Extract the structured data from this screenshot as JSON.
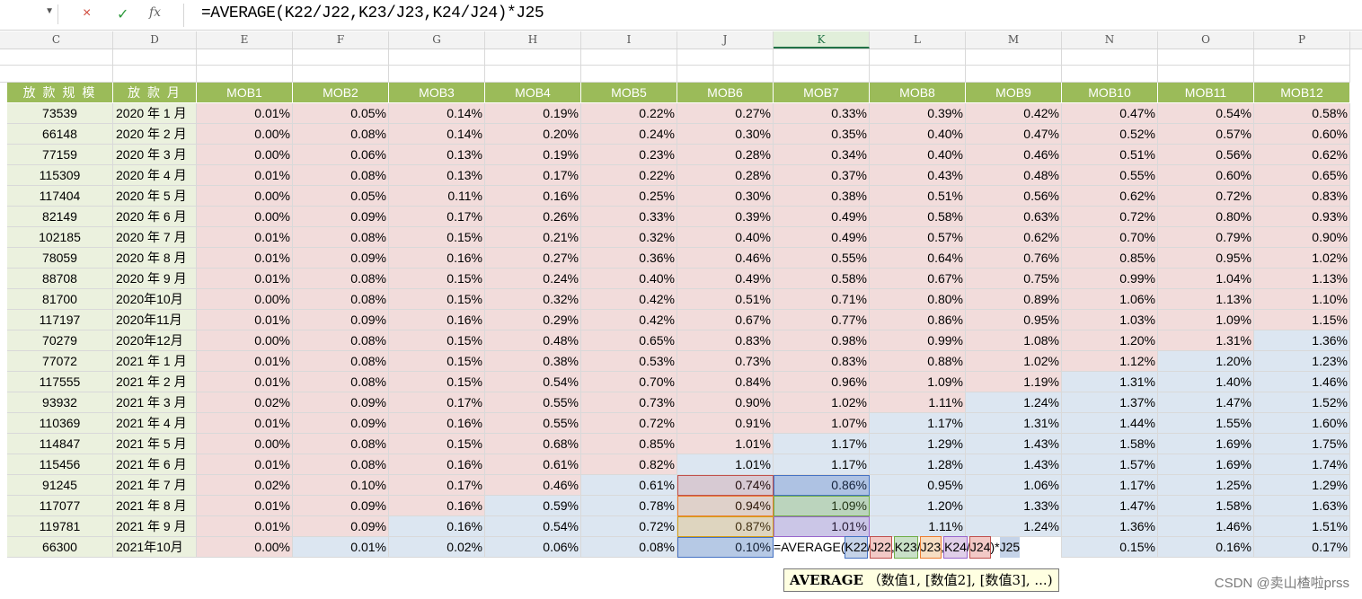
{
  "formula_bar": {
    "name_box": "",
    "cancel_icon": "×",
    "enter_icon": "✓",
    "fx_label": "fx",
    "formula": "=AVERAGE(K22/J22,K23/J23,K24/J24)*J25"
  },
  "columns": [
    {
      "letter": "C"
    },
    {
      "letter": "D"
    },
    {
      "letter": "E"
    },
    {
      "letter": "F"
    },
    {
      "letter": "G"
    },
    {
      "letter": "H"
    },
    {
      "letter": "I"
    },
    {
      "letter": "J"
    },
    {
      "letter": "K"
    },
    {
      "letter": "L"
    },
    {
      "letter": "M"
    },
    {
      "letter": "N"
    },
    {
      "letter": "O"
    },
    {
      "letter": "P"
    }
  ],
  "active_column": "K",
  "table": {
    "headers": [
      "放 款 规 模",
      "放 款 月",
      "MOB1",
      "MOB2",
      "MOB3",
      "MOB4",
      "MOB5",
      "MOB6",
      "MOB7",
      "MOB8",
      "MOB9",
      "MOB10",
      "MOB11",
      "MOB12"
    ],
    "rows": [
      {
        "amount": "73539",
        "month": "2020 年 1 月",
        "mob": [
          "0.01%",
          "0.05%",
          "0.14%",
          "0.19%",
          "0.22%",
          "0.27%",
          "0.33%",
          "0.39%",
          "0.42%",
          "0.47%",
          "0.54%",
          "0.58%"
        ]
      },
      {
        "amount": "66148",
        "month": "2020 年 2 月",
        "mob": [
          "0.00%",
          "0.08%",
          "0.14%",
          "0.20%",
          "0.24%",
          "0.30%",
          "0.35%",
          "0.40%",
          "0.47%",
          "0.52%",
          "0.57%",
          "0.60%"
        ]
      },
      {
        "amount": "77159",
        "month": "2020 年 3 月",
        "mob": [
          "0.00%",
          "0.06%",
          "0.13%",
          "0.19%",
          "0.23%",
          "0.28%",
          "0.34%",
          "0.40%",
          "0.46%",
          "0.51%",
          "0.56%",
          "0.62%"
        ]
      },
      {
        "amount": "115309",
        "month": "2020 年 4 月",
        "mob": [
          "0.01%",
          "0.08%",
          "0.13%",
          "0.17%",
          "0.22%",
          "0.28%",
          "0.37%",
          "0.43%",
          "0.48%",
          "0.55%",
          "0.60%",
          "0.65%"
        ]
      },
      {
        "amount": "117404",
        "month": "2020 年 5 月",
        "mob": [
          "0.00%",
          "0.05%",
          "0.11%",
          "0.16%",
          "0.25%",
          "0.30%",
          "0.38%",
          "0.51%",
          "0.56%",
          "0.62%",
          "0.72%",
          "0.83%"
        ]
      },
      {
        "amount": "82149",
        "month": "2020 年 6 月",
        "mob": [
          "0.00%",
          "0.09%",
          "0.17%",
          "0.26%",
          "0.33%",
          "0.39%",
          "0.49%",
          "0.58%",
          "0.63%",
          "0.72%",
          "0.80%",
          "0.93%"
        ]
      },
      {
        "amount": "102185",
        "month": "2020 年 7 月",
        "mob": [
          "0.01%",
          "0.08%",
          "0.15%",
          "0.21%",
          "0.32%",
          "0.40%",
          "0.49%",
          "0.57%",
          "0.62%",
          "0.70%",
          "0.79%",
          "0.90%"
        ]
      },
      {
        "amount": "78059",
        "month": "2020 年 8 月",
        "mob": [
          "0.01%",
          "0.09%",
          "0.16%",
          "0.27%",
          "0.36%",
          "0.46%",
          "0.55%",
          "0.64%",
          "0.76%",
          "0.85%",
          "0.95%",
          "1.02%"
        ]
      },
      {
        "amount": "88708",
        "month": "2020 年 9 月",
        "mob": [
          "0.01%",
          "0.08%",
          "0.15%",
          "0.24%",
          "0.40%",
          "0.49%",
          "0.58%",
          "0.67%",
          "0.75%",
          "0.99%",
          "1.04%",
          "1.13%"
        ]
      },
      {
        "amount": "81700",
        "month": "2020年10月",
        "mob": [
          "0.00%",
          "0.08%",
          "0.15%",
          "0.32%",
          "0.42%",
          "0.51%",
          "0.71%",
          "0.80%",
          "0.89%",
          "1.06%",
          "1.13%",
          "1.10%"
        ]
      },
      {
        "amount": "117197",
        "month": "2020年11月",
        "mob": [
          "0.01%",
          "0.09%",
          "0.16%",
          "0.29%",
          "0.42%",
          "0.67%",
          "0.77%",
          "0.86%",
          "0.95%",
          "1.03%",
          "1.09%",
          "1.15%"
        ]
      },
      {
        "amount": "70279",
        "month": "2020年12月",
        "mob": [
          "0.00%",
          "0.08%",
          "0.15%",
          "0.48%",
          "0.65%",
          "0.83%",
          "0.98%",
          "0.99%",
          "1.08%",
          "1.20%",
          "1.31%",
          "1.36%"
        ]
      },
      {
        "amount": "77072",
        "month": "2021 年 1 月",
        "mob": [
          "0.01%",
          "0.08%",
          "0.15%",
          "0.38%",
          "0.53%",
          "0.73%",
          "0.83%",
          "0.88%",
          "1.02%",
          "1.12%",
          "1.20%",
          "1.23%"
        ]
      },
      {
        "amount": "117555",
        "month": "2021 年 2 月",
        "mob": [
          "0.01%",
          "0.08%",
          "0.15%",
          "0.54%",
          "0.70%",
          "0.84%",
          "0.96%",
          "1.09%",
          "1.19%",
          "1.31%",
          "1.40%",
          "1.46%"
        ]
      },
      {
        "amount": "93932",
        "month": "2021 年 3 月",
        "mob": [
          "0.02%",
          "0.09%",
          "0.17%",
          "0.55%",
          "0.73%",
          "0.90%",
          "1.02%",
          "1.11%",
          "1.24%",
          "1.37%",
          "1.47%",
          "1.52%"
        ]
      },
      {
        "amount": "110369",
        "month": "2021 年 4 月",
        "mob": [
          "0.01%",
          "0.09%",
          "0.16%",
          "0.55%",
          "0.72%",
          "0.91%",
          "1.07%",
          "1.17%",
          "1.31%",
          "1.44%",
          "1.55%",
          "1.60%"
        ]
      },
      {
        "amount": "114847",
        "month": "2021 年 5 月",
        "mob": [
          "0.00%",
          "0.08%",
          "0.15%",
          "0.68%",
          "0.85%",
          "1.01%",
          "1.17%",
          "1.29%",
          "1.43%",
          "1.58%",
          "1.69%",
          "1.75%"
        ]
      },
      {
        "amount": "115456",
        "month": "2021 年 6 月",
        "mob": [
          "0.01%",
          "0.08%",
          "0.16%",
          "0.61%",
          "0.82%",
          "1.01%",
          "1.17%",
          "1.28%",
          "1.43%",
          "1.57%",
          "1.69%",
          "1.74%"
        ]
      },
      {
        "amount": "91245",
        "month": "2021 年 7 月",
        "mob": [
          "0.02%",
          "0.10%",
          "0.17%",
          "0.46%",
          "0.61%",
          "0.74%",
          "0.86%",
          "0.95%",
          "1.06%",
          "1.17%",
          "1.25%",
          "1.29%"
        ]
      },
      {
        "amount": "117077",
        "month": "2021 年 8 月",
        "mob": [
          "0.01%",
          "0.09%",
          "0.16%",
          "0.59%",
          "0.78%",
          "0.94%",
          "1.09%",
          "1.20%",
          "1.33%",
          "1.47%",
          "1.58%",
          "1.63%"
        ]
      },
      {
        "amount": "119781",
        "month": "2021 年 9 月",
        "mob": [
          "0.01%",
          "0.09%",
          "0.16%",
          "0.54%",
          "0.72%",
          "0.87%",
          "1.01%",
          "1.11%",
          "1.24%",
          "1.36%",
          "1.46%",
          "1.51%"
        ]
      },
      {
        "amount": "66300",
        "month": "2021年10月",
        "mob": [
          "0.00%",
          "0.01%",
          "0.02%",
          "0.06%",
          "0.08%",
          "0.10%",
          "",
          "",
          "",
          "0.15%",
          "0.16%",
          "0.17%"
        ]
      }
    ]
  },
  "colors": {
    "header_bg": "#9bbb59",
    "actual": "#f2dcdb",
    "projected": "#dce6f1",
    "label_bg": "#ebf1de"
  },
  "color_map": [
    "pppppppppppp",
    "pppppppppppp",
    "pppppppppppp",
    "pppppppppppp",
    "pppppppppppp",
    "pppppppppppp",
    "pppppppppppp",
    "pppppppppppp",
    "pppppppppppp",
    "pppppppppppp",
    "pppppppppppp",
    "pppppppppppb",
    "ppppppppppbb",
    "pppppppppbbb",
    "ppppppppbbbb",
    "pppppppbbbbb",
    "ppppppbbbbbb",
    "pppppbbbbbbb",
    "ppppbbbbbbbb",
    "pppbbbbbbbbb",
    "ppbbbbbbbbbb",
    "pbbbbbbbbbbb"
  ],
  "in_cell_edit": {
    "prefix": "=AVERAGE(",
    "parts": [
      "K22",
      "/",
      "J22",
      ",",
      "K23",
      "/",
      "J23",
      ",",
      "K24",
      "/",
      "J24",
      ")*",
      "J25"
    ]
  },
  "tooltip": {
    "func": "AVERAGE",
    "args": "（数值1, [数值2], [数值3], ...)"
  },
  "watermark": "CSDN @卖山楂啦prss"
}
